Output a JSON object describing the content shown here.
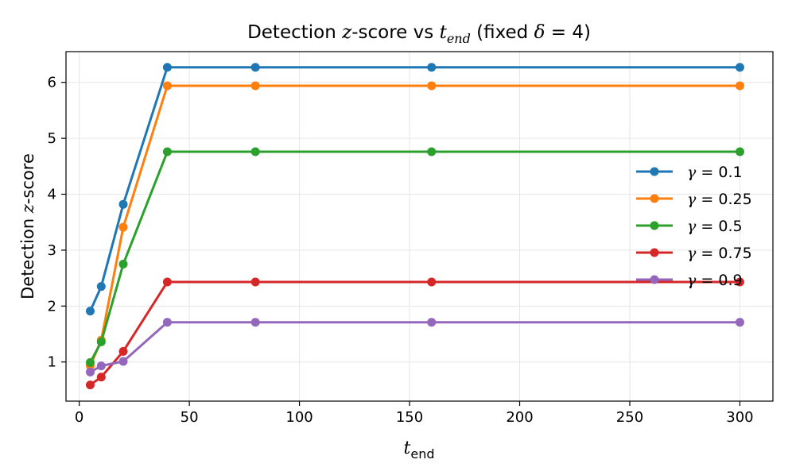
{
  "chart_data": {
    "type": "line",
    "title": {
      "prefix": "Detection ",
      "z": "z",
      "mid": "-score vs ",
      "t": "t",
      "sub": "end",
      "suffix": " (fixed ",
      "delta": "δ",
      "eq": " = 4)"
    },
    "xlabel": {
      "var": "t",
      "sub": "end"
    },
    "ylabel": {
      "prefix": "Detection ",
      "z": "z",
      "suffix": "-score"
    },
    "xlim": [
      -6,
      315
    ],
    "ylim": [
      0.3,
      6.55
    ],
    "x_ticks": [
      0,
      50,
      100,
      150,
      200,
      250,
      300
    ],
    "y_ticks": [
      1,
      2,
      3,
      4,
      5,
      6
    ],
    "grid": true,
    "legend_position": "center-right",
    "x": [
      5,
      10,
      20,
      40,
      80,
      160,
      300
    ],
    "series": [
      {
        "name": "γ = 0.1",
        "gamma_value": "0.1",
        "color": "#1f77b4",
        "values": [
          1.91,
          2.35,
          3.82,
          6.27,
          6.27,
          6.27,
          6.27
        ]
      },
      {
        "name": "γ = 0.25",
        "gamma_value": "0.25",
        "color": "#ff7f0e",
        "values": [
          0.93,
          1.39,
          3.41,
          5.94,
          5.94,
          5.94,
          5.94
        ]
      },
      {
        "name": "γ = 0.5",
        "gamma_value": "0.5",
        "color": "#2ca02c",
        "values": [
          0.99,
          1.36,
          2.75,
          4.76,
          4.76,
          4.76,
          4.76
        ]
      },
      {
        "name": "γ = 0.75",
        "gamma_value": "0.75",
        "color": "#d62728",
        "values": [
          0.59,
          0.73,
          1.19,
          2.43,
          2.43,
          2.43,
          2.43
        ]
      },
      {
        "name": "γ = 0.9",
        "gamma_value": "0.9",
        "color": "#9467bd",
        "values": [
          0.82,
          0.93,
          1.01,
          1.71,
          1.71,
          1.71,
          1.71
        ]
      }
    ],
    "legend_gamma_symbol": "γ",
    "legend_equals": " = "
  }
}
